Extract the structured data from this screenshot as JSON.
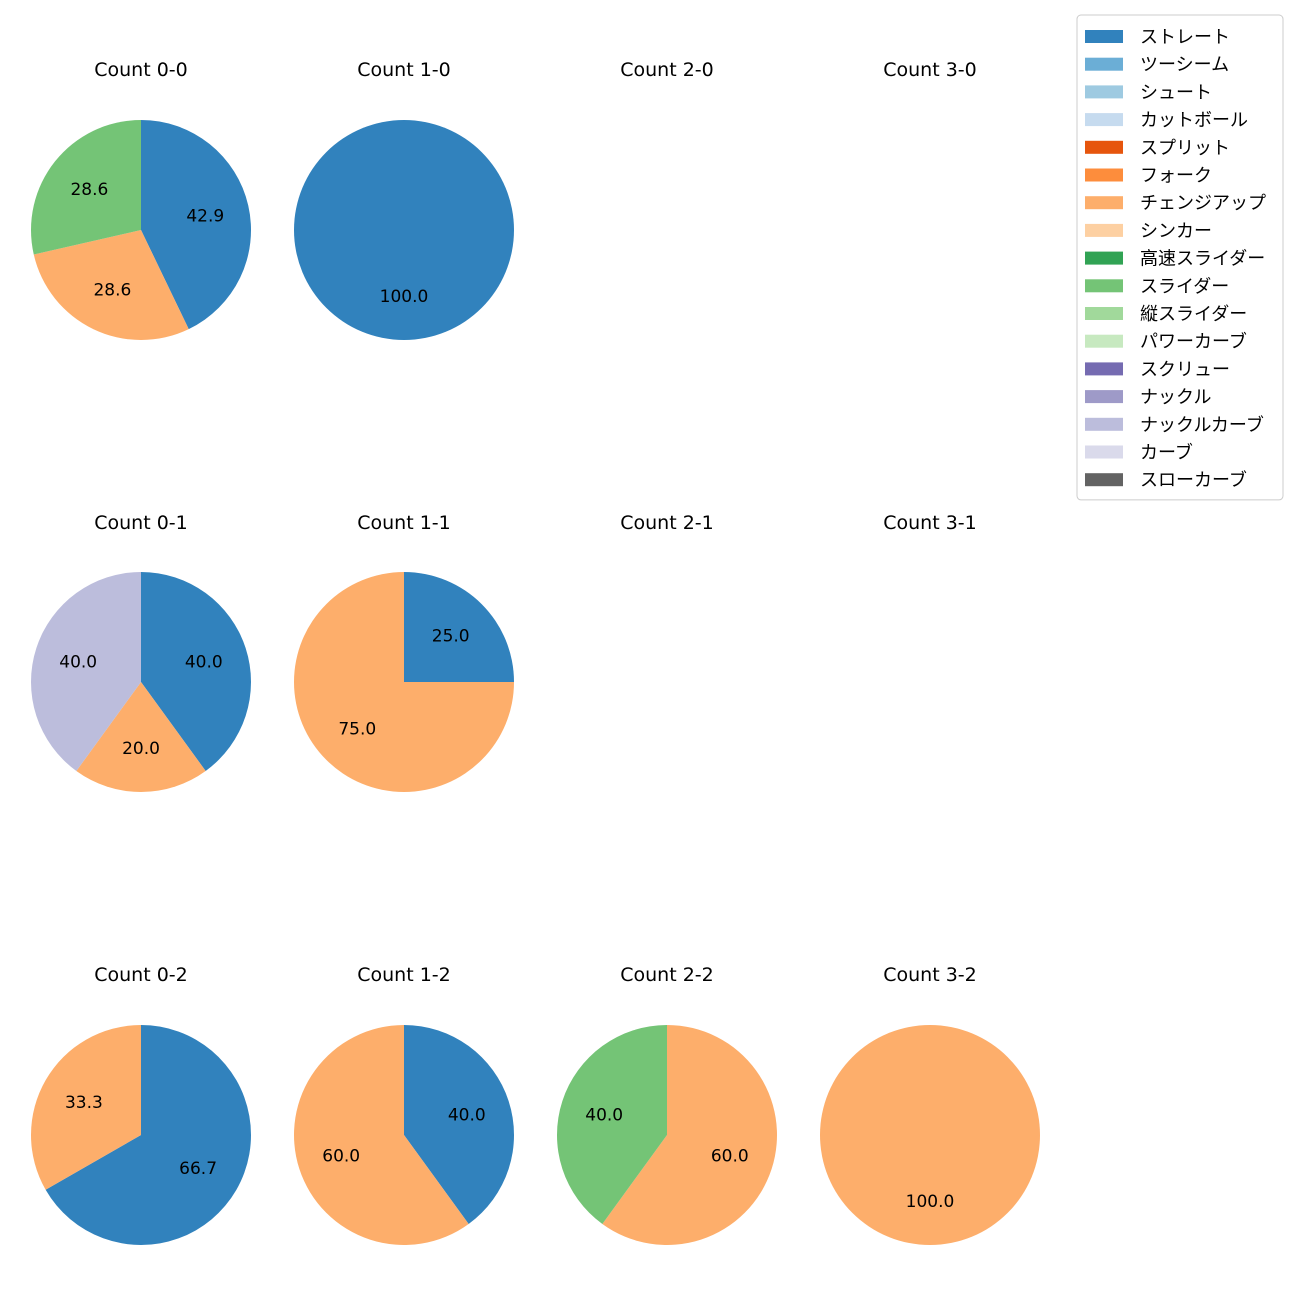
{
  "chart_data": {
    "type": "pie",
    "legend": {
      "placement": "top-right",
      "entries": [
        {
          "name": "ストレート",
          "color": "#3182bd"
        },
        {
          "name": "ツーシーム",
          "color": "#6baed6"
        },
        {
          "name": "シュート",
          "color": "#9ecae1"
        },
        {
          "name": "カットボール",
          "color": "#c6dbef"
        },
        {
          "name": "スプリット",
          "color": "#e6550d"
        },
        {
          "name": "フォーク",
          "color": "#fd8d3c"
        },
        {
          "name": "チェンジアップ",
          "color": "#fdae6b"
        },
        {
          "name": "シンカー",
          "color": "#fdd0a2"
        },
        {
          "name": "高速スライダー",
          "color": "#31a354"
        },
        {
          "name": "スライダー",
          "color": "#74c476"
        },
        {
          "name": "縦スライダー",
          "color": "#a1d99b"
        },
        {
          "name": "パワーカーブ",
          "color": "#c7e9c0"
        },
        {
          "name": "スクリュー",
          "color": "#756bb1"
        },
        {
          "name": "ナックル",
          "color": "#9e9ac8"
        },
        {
          "name": "ナックルカーブ",
          "color": "#bcbddc"
        },
        {
          "name": "カーブ",
          "color": "#dadaeb"
        },
        {
          "name": "スローカーブ",
          "color": "#636363"
        }
      ]
    },
    "panels": [
      {
        "title": "Count 0-0",
        "slices": [
          {
            "pitch": "ストレート",
            "value": 42.9
          },
          {
            "pitch": "チェンジアップ",
            "value": 28.6
          },
          {
            "pitch": "スライダー",
            "value": 28.6
          }
        ]
      },
      {
        "title": "Count 1-0",
        "slices": [
          {
            "pitch": "ストレート",
            "value": 100.0
          }
        ]
      },
      {
        "title": "Count 2-0",
        "slices": []
      },
      {
        "title": "Count 3-0",
        "slices": []
      },
      {
        "title": "Count 0-1",
        "slices": [
          {
            "pitch": "ストレート",
            "value": 40.0
          },
          {
            "pitch": "チェンジアップ",
            "value": 20.0
          },
          {
            "pitch": "ナックルカーブ",
            "value": 40.0
          }
        ]
      },
      {
        "title": "Count 1-1",
        "slices": [
          {
            "pitch": "ストレート",
            "value": 25.0
          },
          {
            "pitch": "チェンジアップ",
            "value": 75.0
          }
        ]
      },
      {
        "title": "Count 2-1",
        "slices": []
      },
      {
        "title": "Count 3-1",
        "slices": []
      },
      {
        "title": "Count 0-2",
        "slices": [
          {
            "pitch": "ストレート",
            "value": 66.7
          },
          {
            "pitch": "チェンジアップ",
            "value": 33.3
          }
        ]
      },
      {
        "title": "Count 1-2",
        "slices": [
          {
            "pitch": "ストレート",
            "value": 40.0
          },
          {
            "pitch": "チェンジアップ",
            "value": 60.0
          }
        ]
      },
      {
        "title": "Count 2-2",
        "slices": [
          {
            "pitch": "チェンジアップ",
            "value": 60.0
          },
          {
            "pitch": "スライダー",
            "value": 40.0
          }
        ]
      },
      {
        "title": "Count 3-2",
        "slices": [
          {
            "pitch": "チェンジアップ",
            "value": 100.0
          }
        ]
      }
    ]
  }
}
